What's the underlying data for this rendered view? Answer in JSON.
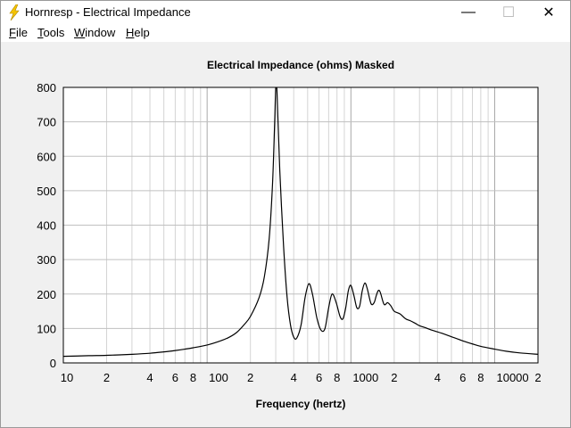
{
  "window": {
    "title": "Hornresp - Electrical Impedance",
    "minimize_glyph": "—",
    "maximize_glyph": "☐",
    "close_glyph": "✕",
    "icon": "lightning-bolt-icon"
  },
  "menu": {
    "items": [
      {
        "label": "File",
        "hotkey": "F",
        "rest": "ile"
      },
      {
        "label": "Tools",
        "hotkey": "T",
        "rest": "ools"
      },
      {
        "label": "Window",
        "hotkey": "W",
        "rest": "indow"
      },
      {
        "label": "Help",
        "hotkey": "H",
        "rest": "elp"
      }
    ]
  },
  "chart_data": {
    "type": "line",
    "title": "Electrical Impedance (ohms)   Masked",
    "xlabel": "Frequency (hertz)",
    "ylabel": "",
    "x_scale": "log",
    "xlim": [
      10,
      20000
    ],
    "ylim": [
      0,
      800
    ],
    "grid": true,
    "y_ticks": [
      0,
      100,
      200,
      300,
      400,
      500,
      600,
      700,
      800
    ],
    "x_tick_labels": [
      {
        "value": 10,
        "label": "10"
      },
      {
        "value": 20,
        "label": "2"
      },
      {
        "value": 40,
        "label": "4"
      },
      {
        "value": 60,
        "label": "6"
      },
      {
        "value": 80,
        "label": "8"
      },
      {
        "value": 100,
        "label": "100"
      },
      {
        "value": 200,
        "label": "2"
      },
      {
        "value": 400,
        "label": "4"
      },
      {
        "value": 600,
        "label": "6"
      },
      {
        "value": 800,
        "label": "8"
      },
      {
        "value": 1000,
        "label": "1000"
      },
      {
        "value": 2000,
        "label": "2"
      },
      {
        "value": 4000,
        "label": "4"
      },
      {
        "value": 6000,
        "label": "6"
      },
      {
        "value": 8000,
        "label": "8"
      },
      {
        "value": 10000,
        "label": "10000"
      },
      {
        "value": 20000,
        "label": "2"
      }
    ],
    "series": [
      {
        "color": "#000000",
        "points": [
          [
            10,
            19
          ],
          [
            15,
            21
          ],
          [
            20,
            22
          ],
          [
            30,
            25
          ],
          [
            40,
            28
          ],
          [
            50,
            32
          ],
          [
            60,
            36
          ],
          [
            70,
            40
          ],
          [
            80,
            44
          ],
          [
            100,
            52
          ],
          [
            120,
            62
          ],
          [
            140,
            73
          ],
          [
            160,
            88
          ],
          [
            180,
            110
          ],
          [
            200,
            135
          ],
          [
            230,
            190
          ],
          [
            250,
            250
          ],
          [
            270,
            360
          ],
          [
            285,
            520
          ],
          [
            295,
            700
          ],
          [
            300,
            800
          ],
          [
            305,
            800
          ],
          [
            310,
            720
          ],
          [
            320,
            560
          ],
          [
            340,
            340
          ],
          [
            360,
            190
          ],
          [
            380,
            110
          ],
          [
            400,
            75
          ],
          [
            420,
            72
          ],
          [
            450,
            110
          ],
          [
            480,
            190
          ],
          [
            510,
            230
          ],
          [
            540,
            200
          ],
          [
            580,
            130
          ],
          [
            620,
            95
          ],
          [
            660,
            100
          ],
          [
            700,
            160
          ],
          [
            740,
            200
          ],
          [
            790,
            175
          ],
          [
            840,
            135
          ],
          [
            880,
            128
          ],
          [
            920,
            160
          ],
          [
            960,
            210
          ],
          [
            1000,
            225
          ],
          [
            1050,
            195
          ],
          [
            1100,
            160
          ],
          [
            1150,
            165
          ],
          [
            1200,
            210
          ],
          [
            1250,
            232
          ],
          [
            1300,
            215
          ],
          [
            1380,
            172
          ],
          [
            1450,
            175
          ],
          [
            1500,
            195
          ],
          [
            1550,
            210
          ],
          [
            1600,
            205
          ],
          [
            1700,
            170
          ],
          [
            1800,
            175
          ],
          [
            1900,
            165
          ],
          [
            2000,
            150
          ],
          [
            2200,
            142
          ],
          [
            2400,
            128
          ],
          [
            2600,
            122
          ],
          [
            2800,
            115
          ],
          [
            3000,
            108
          ],
          [
            3300,
            102
          ],
          [
            3600,
            96
          ],
          [
            4000,
            90
          ],
          [
            4500,
            83
          ],
          [
            5000,
            76
          ],
          [
            6000,
            64
          ],
          [
            7000,
            55
          ],
          [
            8000,
            48
          ],
          [
            10000,
            40
          ],
          [
            12000,
            34
          ],
          [
            15000,
            29
          ],
          [
            20000,
            25
          ]
        ]
      }
    ]
  }
}
